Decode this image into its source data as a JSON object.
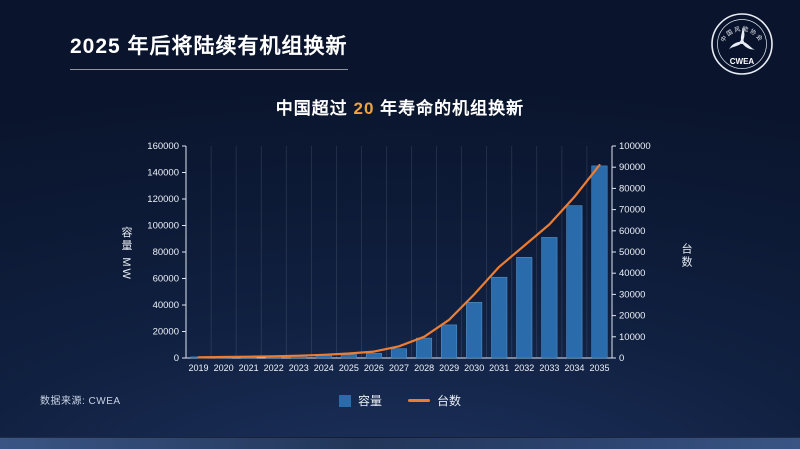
{
  "slide": {
    "title": "2025 年后将陆续有机组换新",
    "source": "数据来源: CWEA",
    "logo_text": "CWEA",
    "logo_ring_text": "中国风能协会"
  },
  "chart_title": {
    "prefix": "中国超过 ",
    "highlight": "20",
    "suffix": " 年寿命的机组换新"
  },
  "colors": {
    "background": "#0d1b38",
    "bar": "#2a6bab",
    "bar_edge": "#5d9bd0",
    "line": "#ed7d31",
    "highlight": "#f0a23c",
    "text": "#ffffff"
  },
  "chart_data": {
    "type": "bar",
    "subtype": "bar-plus-line-dual-axis",
    "title": "中国超过 20 年寿命的机组换新",
    "categories": [
      "2019",
      "2020",
      "2021",
      "2022",
      "2023",
      "2024",
      "2025",
      "2026",
      "2027",
      "2028",
      "2029",
      "2030",
      "2031",
      "2032",
      "2033",
      "2034",
      "2035"
    ],
    "series": [
      {
        "name": "容量",
        "type": "bar",
        "axis": "left",
        "color": "#2a6bab",
        "values": [
          800,
          900,
          1100,
          1300,
          1600,
          2000,
          2600,
          3500,
          7000,
          15000,
          25000,
          42000,
          61000,
          76000,
          91000,
          115000,
          145000
        ]
      },
      {
        "name": "台数",
        "type": "line",
        "axis": "right",
        "color": "#ed7d31",
        "values": [
          300,
          450,
          600,
          800,
          1100,
          1500,
          2100,
          3000,
          5500,
          10000,
          18000,
          30000,
          43000,
          53000,
          63000,
          76000,
          91000
        ]
      }
    ],
    "left_axis": {
      "label": "容量 MW",
      "min": 0,
      "max": 160000,
      "step": 20000
    },
    "right_axis": {
      "label": "台数",
      "min": 0,
      "max": 100000,
      "step": 10000
    },
    "legend": [
      "容量",
      "台数"
    ],
    "grid": "vertical-only",
    "legend_position": "bottom-center"
  }
}
